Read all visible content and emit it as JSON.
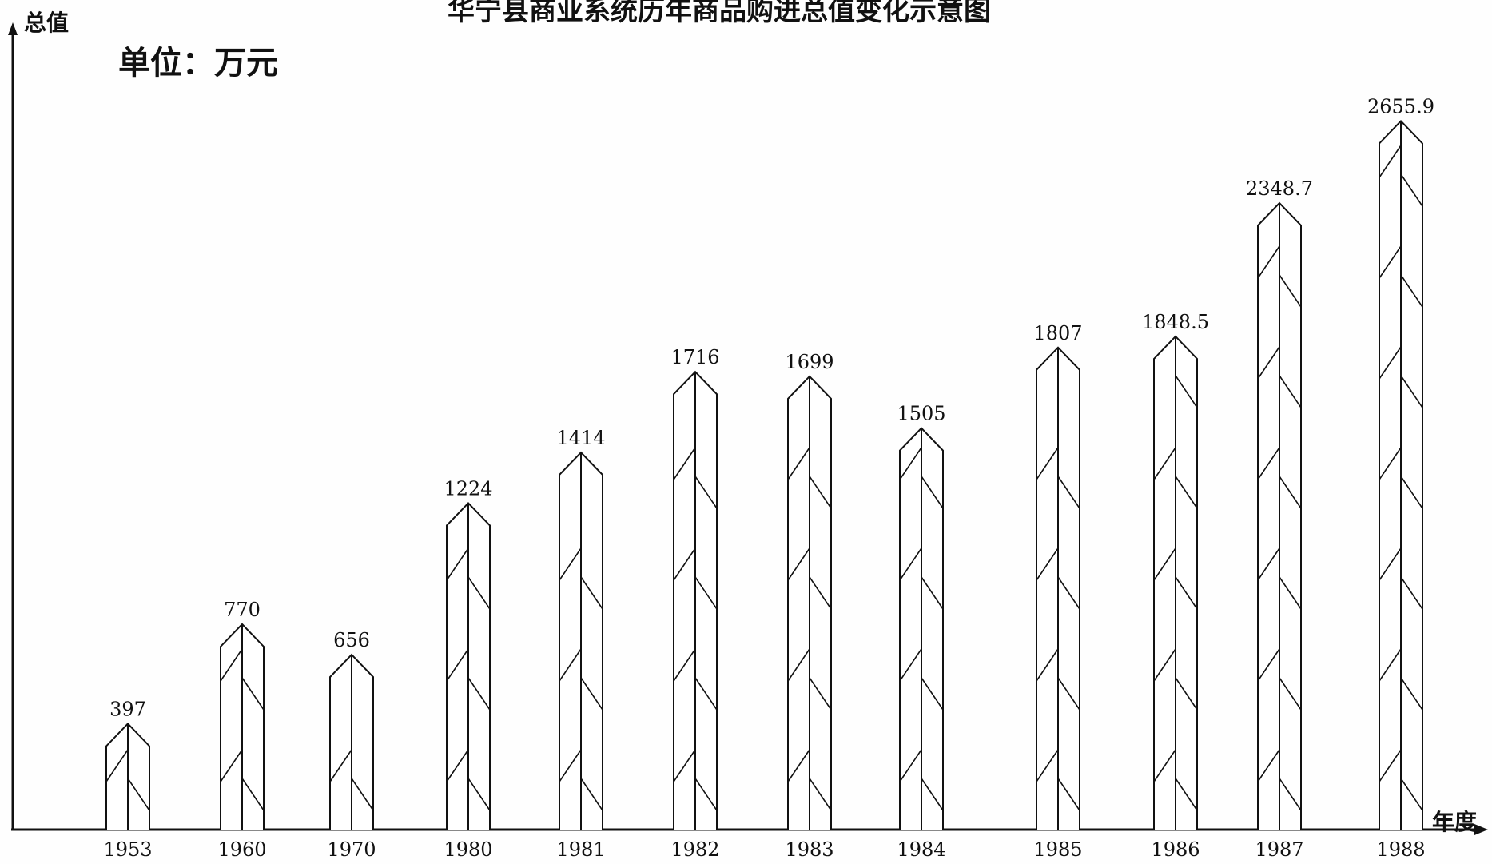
{
  "chart_data": {
    "type": "bar",
    "title": "华宁县商业系统历年商品购进总值变化示意图",
    "unit_label": "单位：万元",
    "ylabel": "总值",
    "xlabel": "年度",
    "categories": [
      "1953",
      "1960",
      "1970",
      "1980",
      "1981",
      "1982",
      "1983",
      "1984",
      "1985",
      "1986",
      "1987",
      "1988"
    ],
    "values": [
      397,
      770,
      656,
      1224,
      1414,
      1716,
      1699,
      1505,
      1807,
      1848.5,
      2348.7,
      2655.9
    ],
    "value_labels": [
      "397",
      "770",
      "656",
      "1224",
      "1414",
      "1716",
      "1699",
      "1505",
      "1807",
      "1848.5",
      "2348.7",
      "2655.9"
    ],
    "ylim": [
      0,
      2900
    ],
    "grid": false,
    "legend": "none",
    "bar_style": "hatched arrow-topped columns",
    "colors": {
      "ink": "#111111",
      "paper": "#fefefe"
    }
  }
}
